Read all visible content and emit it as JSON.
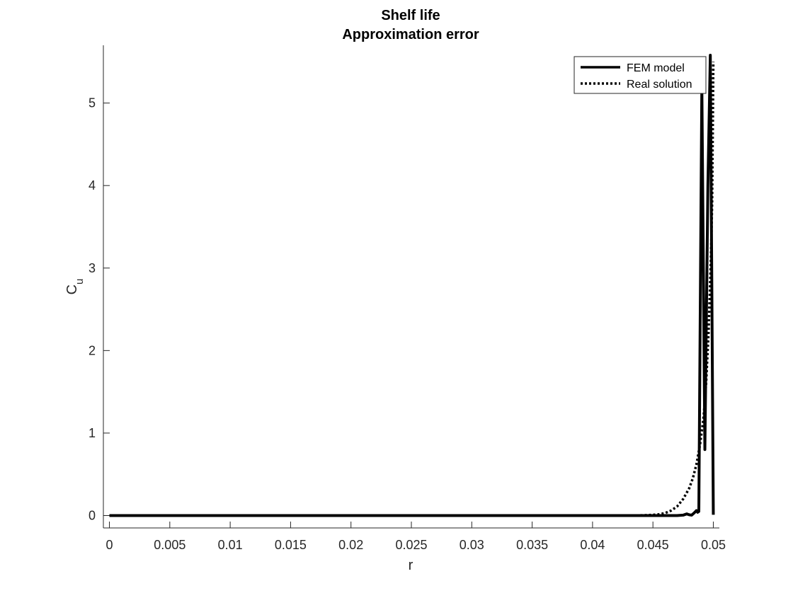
{
  "chart_data": {
    "type": "line",
    "title": [
      "Shelf life",
      "Approximation error"
    ],
    "xlabel": "r",
    "ylabel": {
      "main": "C",
      "subscript": "u"
    },
    "xlim": [
      -0.0005,
      0.0505
    ],
    "ylim": [
      -0.15,
      5.7
    ],
    "x_ticks": [
      0,
      0.005,
      0.01,
      0.015,
      0.02,
      0.025,
      0.03,
      0.035,
      0.04,
      0.045,
      0.05
    ],
    "x_tick_labels": [
      "0",
      "0.005",
      "0.01",
      "0.015",
      "0.02",
      "0.025",
      "0.03",
      "0.035",
      "0.04",
      "0.045",
      "0.05"
    ],
    "y_ticks": [
      0,
      1,
      2,
      3,
      4,
      5
    ],
    "y_tick_labels": [
      "0",
      "1",
      "2",
      "3",
      "4",
      "5"
    ],
    "grid": false,
    "legend_position": "top-right",
    "series": [
      {
        "name": "FEM model",
        "style": "solid",
        "color": "#000000",
        "points": [
          [
            0,
            0
          ],
          [
            0.047,
            0
          ],
          [
            0.0475,
            0.005
          ],
          [
            0.0478,
            0.02
          ],
          [
            0.048,
            0.01
          ],
          [
            0.0482,
            0.005
          ],
          [
            0.0484,
            0.03
          ],
          [
            0.0486,
            0.06
          ],
          [
            0.0487,
            0.04
          ],
          [
            0.0488,
            0.05
          ],
          [
            0.04905,
            5.2
          ],
          [
            0.0493,
            0.8
          ],
          [
            0.04955,
            4.0
          ],
          [
            0.04975,
            5.58
          ],
          [
            0.05,
            0.01
          ]
        ]
      },
      {
        "name": "Real solution",
        "style": "dotted",
        "color": "#000000",
        "points": [
          [
            0,
            0
          ],
          [
            0.043,
            0
          ],
          [
            0.044,
            0.003
          ],
          [
            0.045,
            0.008
          ],
          [
            0.0455,
            0.015
          ],
          [
            0.046,
            0.03
          ],
          [
            0.0465,
            0.06
          ],
          [
            0.047,
            0.11
          ],
          [
            0.0475,
            0.2
          ],
          [
            0.048,
            0.33
          ],
          [
            0.0483,
            0.45
          ],
          [
            0.0486,
            0.62
          ],
          [
            0.0489,
            0.86
          ],
          [
            0.0492,
            1.2
          ],
          [
            0.0494,
            1.6
          ],
          [
            0.0496,
            2.2
          ],
          [
            0.0498,
            3.1
          ],
          [
            0.0499,
            3.8
          ],
          [
            0.04995,
            4.6
          ],
          [
            0.05,
            5.5
          ]
        ]
      }
    ]
  }
}
